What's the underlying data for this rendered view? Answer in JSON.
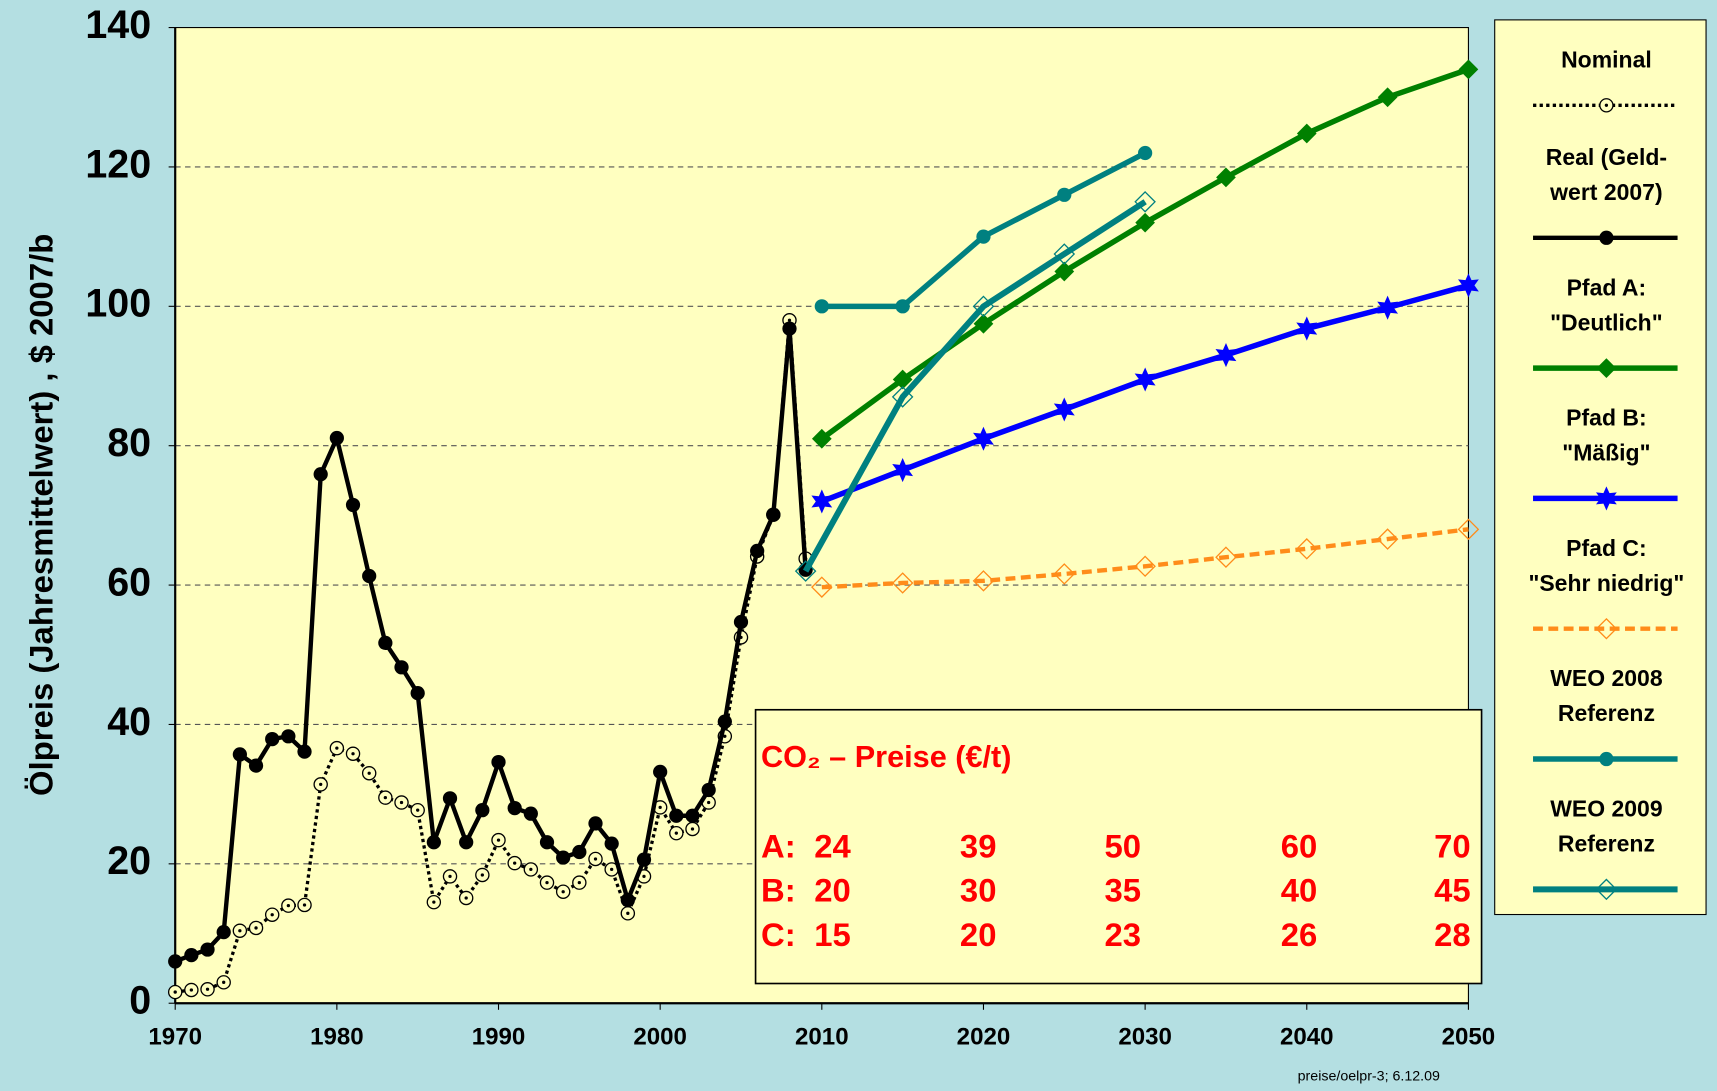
{
  "chart_data": {
    "type": "line",
    "y_axis_label": "Ölpreis (Jahresmittelwert) , $ 2007/b",
    "xlim": [
      1970,
      2050
    ],
    "xticks": [
      1970,
      1980,
      1990,
      2000,
      2010,
      2020,
      2030,
      2040,
      2050
    ],
    "ylim": [
      0,
      140
    ],
    "yticks": [
      0,
      20,
      40,
      60,
      80,
      100,
      120,
      140
    ],
    "grid": true,
    "series": [
      {
        "name": "Nominal",
        "color": "#000000",
        "marker": "circle-open-dot",
        "line": "dotted",
        "x": [
          1970,
          1971,
          1972,
          1973,
          1974,
          1975,
          1976,
          1977,
          1978,
          1979,
          1980,
          1981,
          1982,
          1983,
          1984,
          1985,
          1986,
          1987,
          1988,
          1989,
          1990,
          1991,
          1992,
          1993,
          1994,
          1995,
          1996,
          1997,
          1998,
          1999,
          2000,
          2001,
          2002,
          2003,
          2004,
          2005,
          2006,
          2007,
          2008,
          2009
        ],
        "values": [
          1.6,
          1.9,
          2.0,
          3.0,
          10.4,
          10.8,
          12.7,
          14.0,
          14.1,
          31.4,
          36.6,
          35.8,
          33.0,
          29.5,
          28.8,
          27.7,
          14.5,
          18.2,
          15.1,
          18.4,
          23.4,
          20.1,
          19.2,
          17.3,
          16.0,
          17.3,
          20.7,
          19.2,
          12.9,
          18.2,
          28.1,
          24.4,
          25.0,
          28.8,
          38.3,
          52.5,
          64.1,
          70.1,
          98.0,
          63.8
        ]
      },
      {
        "name": "Real (Geld-\nwert 2007)",
        "color": "#000000",
        "marker": "circle",
        "line": "solid",
        "x": [
          1970,
          1971,
          1972,
          1973,
          1974,
          1975,
          1976,
          1977,
          1978,
          1979,
          1980,
          1981,
          1982,
          1983,
          1984,
          1985,
          1986,
          1987,
          1988,
          1989,
          1990,
          1991,
          1992,
          1993,
          1994,
          1995,
          1996,
          1997,
          1998,
          1999,
          2000,
          2001,
          2002,
          2003,
          2004,
          2005,
          2006,
          2007,
          2008,
          2009
        ],
        "values": [
          6.0,
          6.9,
          7.7,
          10.2,
          35.7,
          34.1,
          37.9,
          38.3,
          36.1,
          75.9,
          81.1,
          71.5,
          61.3,
          51.7,
          48.2,
          44.5,
          23.1,
          29.4,
          23.1,
          27.7,
          34.6,
          28.0,
          27.2,
          23.1,
          20.9,
          21.7,
          25.8,
          22.9,
          14.8,
          20.6,
          33.2,
          26.9,
          26.9,
          30.6,
          40.4,
          54.7,
          64.9,
          70.1,
          96.8,
          62.2
        ]
      },
      {
        "name": "Pfad A:\n\"Deutlich\"",
        "color": "#008000",
        "marker": "diamond",
        "line": "solid",
        "x": [
          2010,
          2015,
          2020,
          2025,
          2030,
          2035,
          2040,
          2045,
          2050
        ],
        "values": [
          81,
          89.5,
          97.5,
          105,
          112,
          118.5,
          124.8,
          130,
          134
        ]
      },
      {
        "name": "Pfad B:\n\"Mäßig\"",
        "color": "#0000ff",
        "marker": "star",
        "line": "solid",
        "x": [
          2010,
          2015,
          2020,
          2025,
          2030,
          2035,
          2040,
          2045,
          2050
        ],
        "values": [
          72,
          76.5,
          81,
          85.2,
          89.5,
          93,
          96.8,
          99.8,
          103
        ]
      },
      {
        "name": "Pfad C:\n\"Sehr niedrig\"",
        "color": "#ff8c1a",
        "marker": "diamond-open",
        "line": "dashed",
        "x": [
          2010,
          2015,
          2020,
          2025,
          2030,
          2035,
          2040,
          2045,
          2050
        ],
        "values": [
          59.7,
          60.3,
          60.6,
          61.6,
          62.7,
          64,
          65.2,
          66.6,
          68
        ]
      },
      {
        "name": "WEO 2008\nReferenz",
        "color": "#008080",
        "marker": "circle",
        "line": "solid",
        "x": [
          2010,
          2015,
          2020,
          2025,
          2030
        ],
        "values": [
          100,
          100,
          110,
          116,
          122
        ]
      },
      {
        "name": "WEO 2009\nReferenz",
        "color": "#008080",
        "marker": "diamond-open",
        "line": "thick",
        "x": [
          2009,
          2015,
          2020,
          2025,
          2030
        ],
        "values": [
          62,
          87,
          100,
          107.5,
          115
        ]
      }
    ]
  },
  "co2_table": {
    "title": "CO₂ – Preise (€/t)",
    "rows": [
      {
        "label": "A:",
        "values": [
          24,
          39,
          50,
          60,
          70
        ]
      },
      {
        "label": "B:",
        "values": [
          20,
          30,
          35,
          40,
          45
        ]
      },
      {
        "label": "C:",
        "values": [
          15,
          20,
          23,
          26,
          28
        ]
      }
    ]
  },
  "footer": "preise/oelpr-3; 6.12.09"
}
